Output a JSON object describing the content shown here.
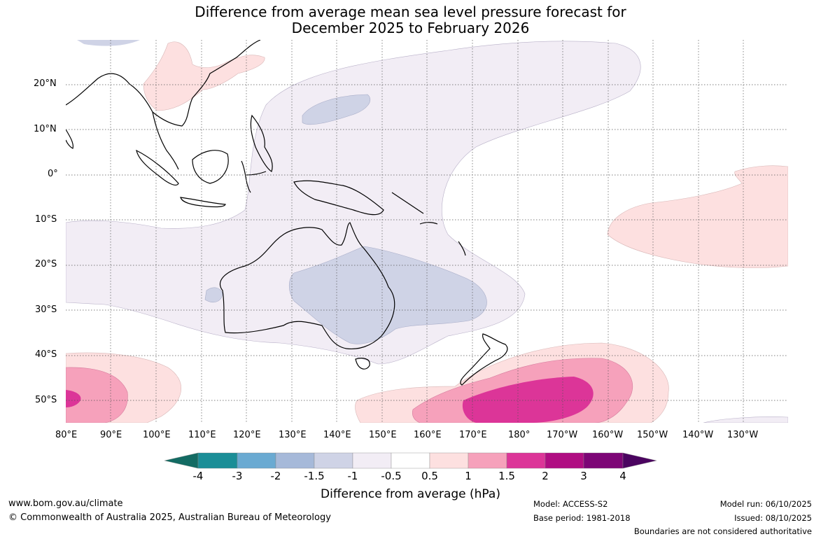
{
  "title_line1": "Difference from average mean sea level pressure forecast for",
  "title_line2": "December 2025 to February 2026",
  "map": {
    "lon_labels": [
      "80°E",
      "90°E",
      "100°E",
      "110°E",
      "120°E",
      "130°E",
      "140°E",
      "150°E",
      "160°E",
      "170°E",
      "180°",
      "170°W",
      "160°W",
      "150°W",
      "140°W",
      "130°W"
    ],
    "lat_labels": [
      "20°N",
      "10°N",
      "0°",
      "10°S",
      "20°S",
      "30°S",
      "40°S",
      "50°S"
    ],
    "lon_extent": [
      80,
      235
    ],
    "lat_extent": [
      -55,
      30
    ]
  },
  "colorbar": {
    "ticks": [
      "-4",
      "-3",
      "-2",
      "-1.5",
      "-1",
      "-0.5",
      "0.5",
      "1",
      "1.5",
      "2",
      "3",
      "4"
    ],
    "colors": [
      "#136b63",
      "#1a8e97",
      "#6aaad2",
      "#a6b9d9",
      "#cfd3e6",
      "#f2edf5",
      "#ffffff",
      "#fde0e0",
      "#f6a1bb",
      "#dc3598",
      "#b00d82",
      "#7d0576",
      "#4b0460"
    ],
    "label": "Difference from average (hPa)"
  },
  "footer": {
    "site": "www.bom.gov.au/climate",
    "copyright": "© Commonwealth of Australia 2025, Australian Bureau of Meteorology",
    "model": "Model: ACCESS-S2",
    "base_period": "Base period: 1981-2018",
    "model_run": "Model run: 06/10/2025",
    "issued": "Issued: 08/10/2025",
    "disclaimer": "Boundaries are not considered authoritative"
  }
}
